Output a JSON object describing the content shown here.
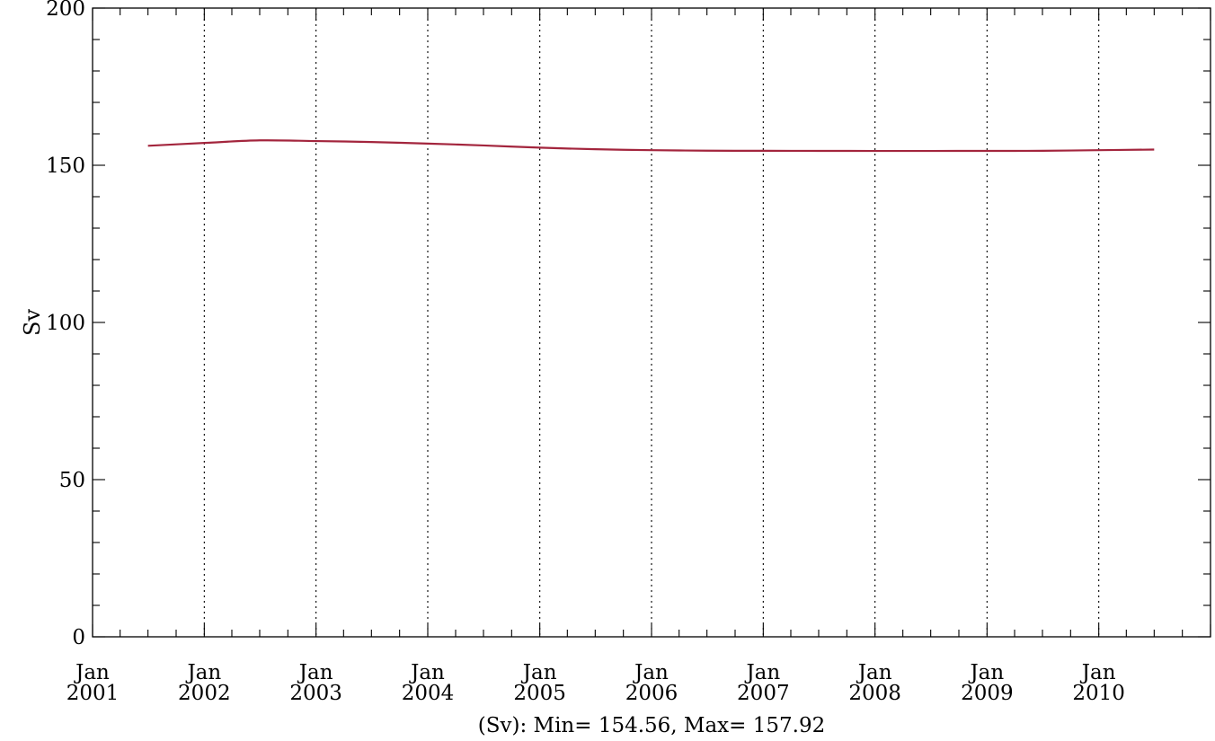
{
  "chart_data": {
    "type": "line",
    "title": "",
    "ylabel": "Sv",
    "xlabel": "(Sv): Min= 154.56, Max= 157.92",
    "ylim": [
      0,
      200
    ],
    "xlim": [
      "2001-01-01",
      "2011-01-01"
    ],
    "y_ticks": [
      "0",
      "50",
      "100",
      "150",
      "200"
    ],
    "x_tick_labels": [
      {
        "date": "2001-01-01",
        "month": "Jan",
        "year": "2001"
      },
      {
        "date": "2002-01-01",
        "month": "Jan",
        "year": "2002"
      },
      {
        "date": "2003-01-01",
        "month": "Jan",
        "year": "2003"
      },
      {
        "date": "2004-01-01",
        "month": "Jan",
        "year": "2004"
      },
      {
        "date": "2005-01-01",
        "month": "Jan",
        "year": "2005"
      },
      {
        "date": "2006-01-01",
        "month": "Jan",
        "year": "2006"
      },
      {
        "date": "2007-01-01",
        "month": "Jan",
        "year": "2007"
      },
      {
        "date": "2008-01-01",
        "month": "Jan",
        "year": "2008"
      },
      {
        "date": "2009-01-01",
        "month": "Jan",
        "year": "2009"
      },
      {
        "date": "2010-01-01",
        "month": "Jan",
        "year": "2010"
      }
    ],
    "grid": "vertical dotted lines at each January",
    "series": [
      {
        "color": "#a3253d",
        "x": [
          "2001-07-01",
          "2002-01-01",
          "2002-07-01",
          "2003-01-01",
          "2003-07-01",
          "2004-01-01",
          "2004-07-01",
          "2005-01-01",
          "2005-07-01",
          "2006-01-01",
          "2006-07-01",
          "2007-01-01",
          "2007-07-01",
          "2008-01-01",
          "2008-07-01",
          "2009-01-01",
          "2009-07-01",
          "2010-01-01",
          "2010-07-01"
        ],
        "y": [
          156.2,
          157.1,
          157.92,
          157.7,
          157.4,
          156.9,
          156.3,
          155.6,
          155.1,
          154.8,
          154.65,
          154.6,
          154.58,
          154.56,
          154.56,
          154.57,
          154.6,
          154.8,
          155.0
        ]
      }
    ]
  }
}
